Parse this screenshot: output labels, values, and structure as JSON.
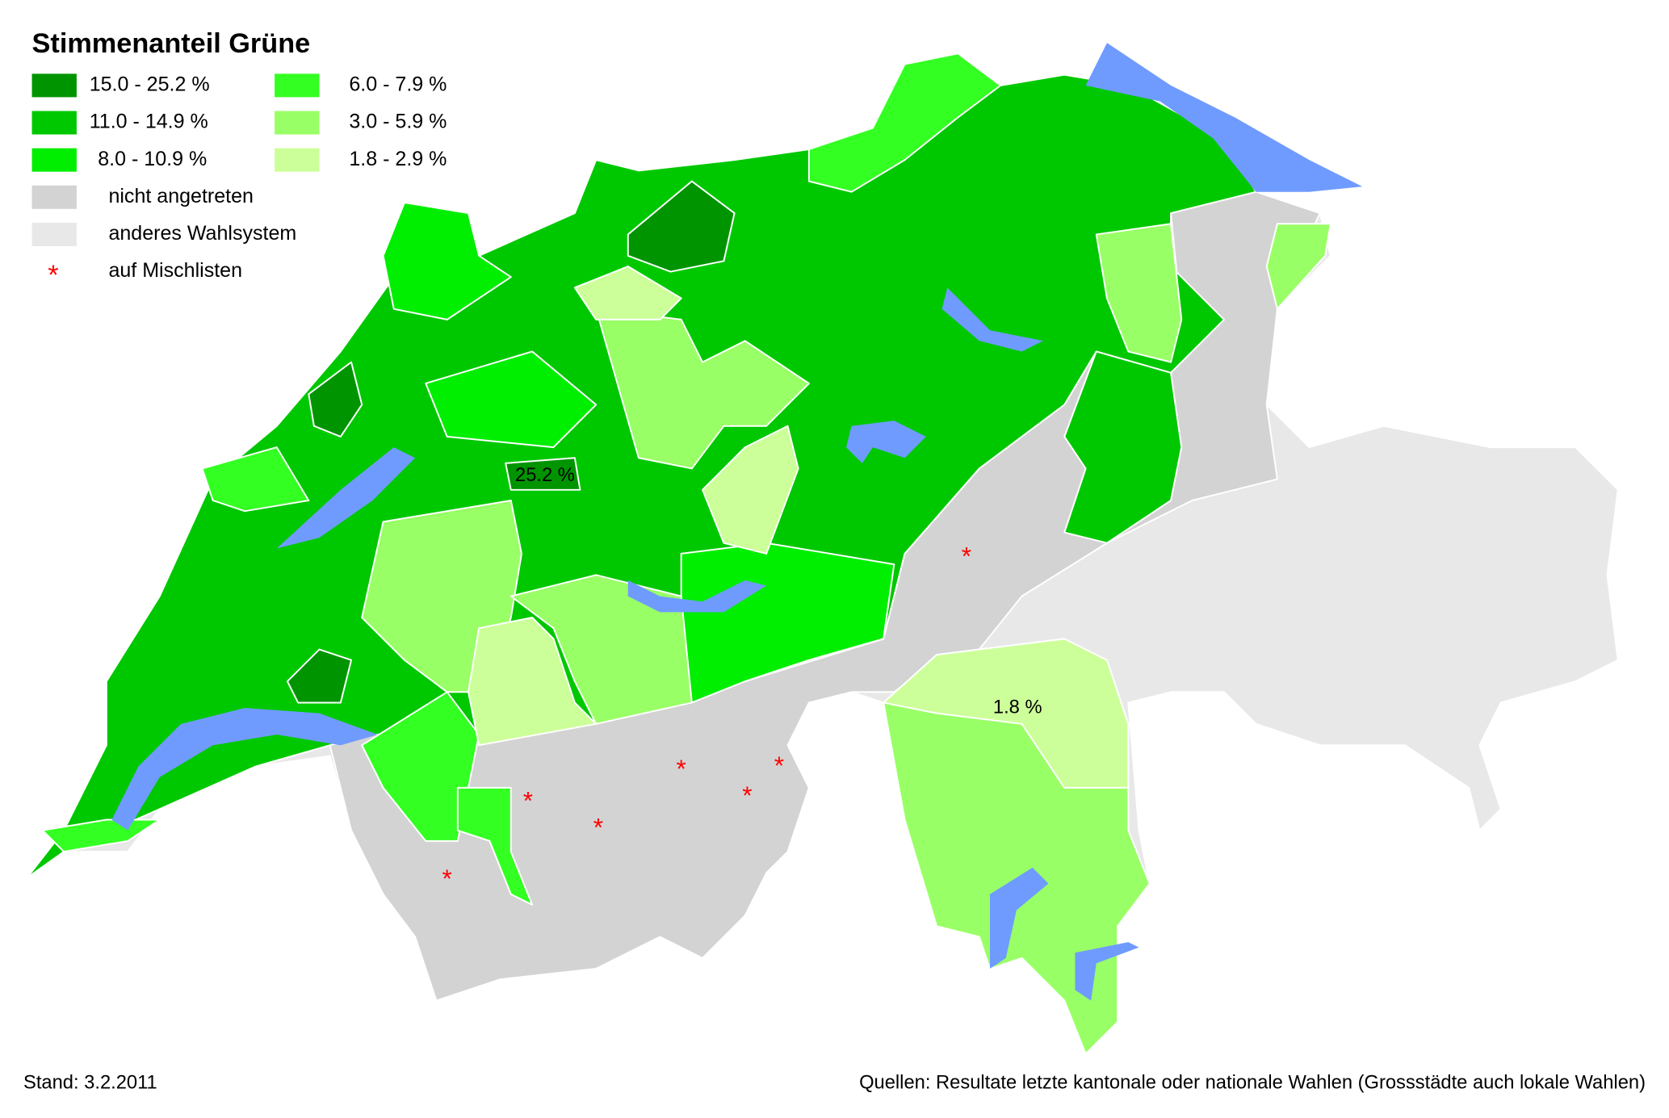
{
  "title": "Stimmenanteil Grüne",
  "legend": {
    "items": [
      {
        "label": "15.0 - 25.2 %",
        "color": "#009400"
      },
      {
        "label": "11.0 - 14.9 %",
        "color": "#00c800"
      },
      {
        "label": "8.0 - 10.9 %",
        "color": "#00ee00"
      },
      {
        "label": "6.0 - 7.9 %",
        "color": "#33ff22"
      },
      {
        "label": "3.0 - 5.9 %",
        "color": "#99ff66"
      },
      {
        "label": "1.8 - 2.9 %",
        "color": "#ccff99"
      },
      {
        "label": "nicht angetreten",
        "color": "#d3d3d3"
      },
      {
        "label": "anderes Wahlsystem",
        "color": "#e8e8e8"
      }
    ],
    "marker": {
      "symbol": "*",
      "label": "auf Mischlisten",
      "color": "#ff0000"
    }
  },
  "annotations": [
    "25.2 %",
    "1.8 %"
  ],
  "lake_color": "#6f9bff",
  "footer": {
    "date": "Stand: 3.2.2011",
    "sources": "Quellen: Resultate letzte kantonale oder nationale Wahlen (Grossstädte auch lokale Wahlen)"
  }
}
